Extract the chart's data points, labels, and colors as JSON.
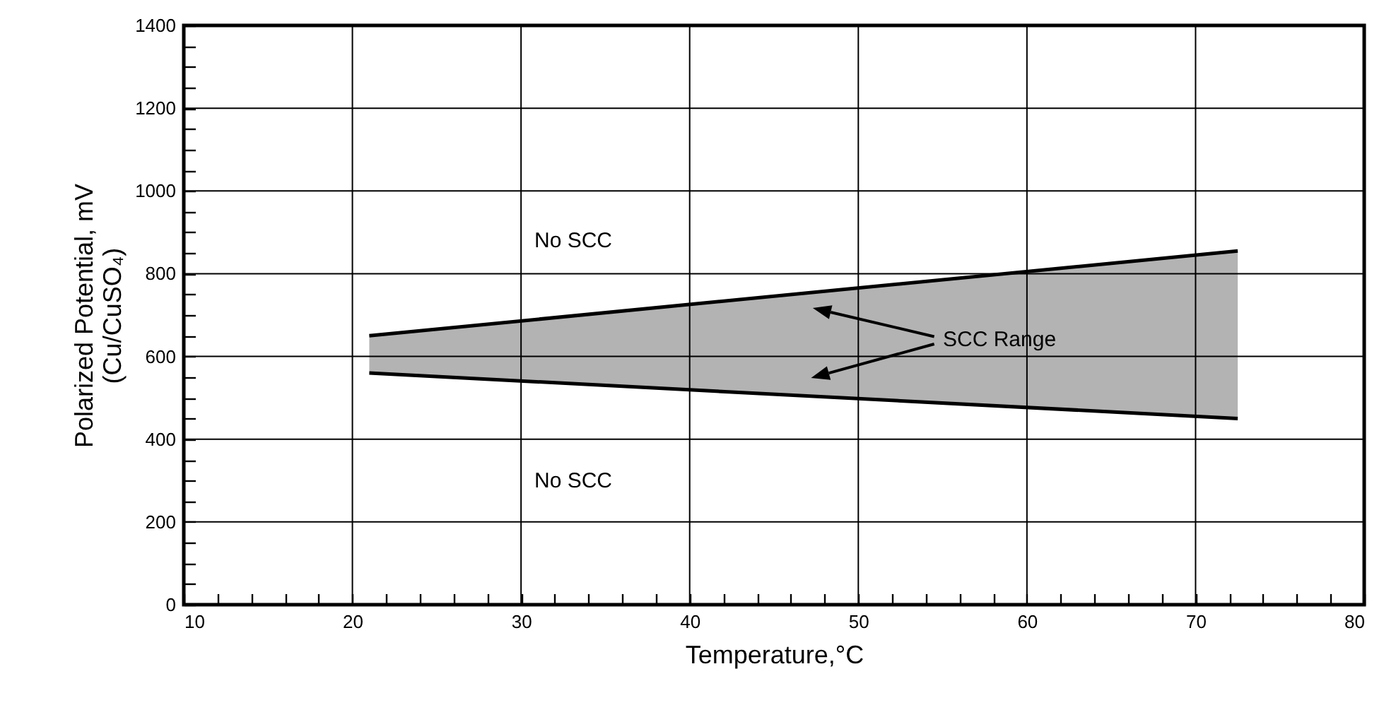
{
  "chart_data": {
    "type": "line",
    "xlabel": "Temperature,°C",
    "ylabel": "Polarized Potential, mV\n(Cu/CuSO₄)",
    "xlim": [
      10,
      80
    ],
    "ylim": [
      0,
      1400
    ],
    "xticks": [
      10,
      {
        "value": 12,
        "label": null
      },
      {
        "value": 14,
        "label": null
      },
      {
        "value": 16,
        "label": null
      },
      {
        "value": 18,
        "label": null
      },
      20,
      {
        "value": 22,
        "label": null
      },
      {
        "value": 24,
        "label": null
      },
      {
        "value": 26,
        "label": null
      },
      {
        "value": 28,
        "label": null
      },
      30,
      {
        "value": 32,
        "label": null
      },
      {
        "value": 34,
        "label": null
      },
      {
        "value": 36,
        "label": null
      },
      {
        "value": 38,
        "label": null
      },
      40,
      {
        "value": 42,
        "label": null
      },
      {
        "value": 44,
        "label": null
      },
      {
        "value": 46,
        "label": null
      },
      {
        "value": 48,
        "label": null
      },
      50,
      {
        "value": 52,
        "label": null
      },
      {
        "value": 54,
        "label": null
      },
      {
        "value": 56,
        "label": null
      },
      {
        "value": 58,
        "label": null
      },
      60,
      {
        "value": 62,
        "label": null
      },
      {
        "value": 64,
        "label": null
      },
      {
        "value": 66,
        "label": null
      },
      {
        "value": 68,
        "label": null
      },
      70,
      {
        "value": 72,
        "label": null
      },
      {
        "value": 74,
        "label": null
      },
      {
        "value": 76,
        "label": null
      },
      {
        "value": 78,
        "label": null
      },
      80
    ],
    "yticks": [
      0,
      {
        "value": 50,
        "label": null
      },
      {
        "value": 100,
        "label": null
      },
      {
        "value": 150,
        "label": null
      },
      200,
      {
        "value": 250,
        "label": null
      },
      {
        "value": 300,
        "label": null
      },
      {
        "value": 350,
        "label": null
      },
      400,
      {
        "value": 450,
        "label": null
      },
      {
        "value": 500,
        "label": null
      },
      {
        "value": 550,
        "label": null
      },
      600,
      {
        "value": 650,
        "label": null
      },
      {
        "value": 700,
        "label": null
      },
      {
        "value": 750,
        "label": null
      },
      800,
      {
        "value": 850,
        "label": null
      },
      {
        "value": 900,
        "label": null
      },
      {
        "value": 950,
        "label": null
      },
      1000,
      {
        "value": 1050,
        "label": null
      },
      {
        "value": 1100,
        "label": null
      },
      {
        "value": 1150,
        "label": null
      },
      1200,
      {
        "value": 1250,
        "label": null
      },
      {
        "value": 1300,
        "label": null
      },
      {
        "value": 1350,
        "label": null
      },
      1400
    ],
    "grid": true,
    "x": [
      21,
      72.5
    ],
    "series": [
      {
        "color": "#000000",
        "values": [
          650,
          855
        ],
        "lower": [
          560,
          450
        ],
        "upper": [
          650,
          855
        ]
      },
      {
        "color": "#000000",
        "values": [
          560,
          450
        ]
      }
    ],
    "annotations": [
      "No SCC",
      "No SCC",
      "SCC Range"
    ]
  }
}
